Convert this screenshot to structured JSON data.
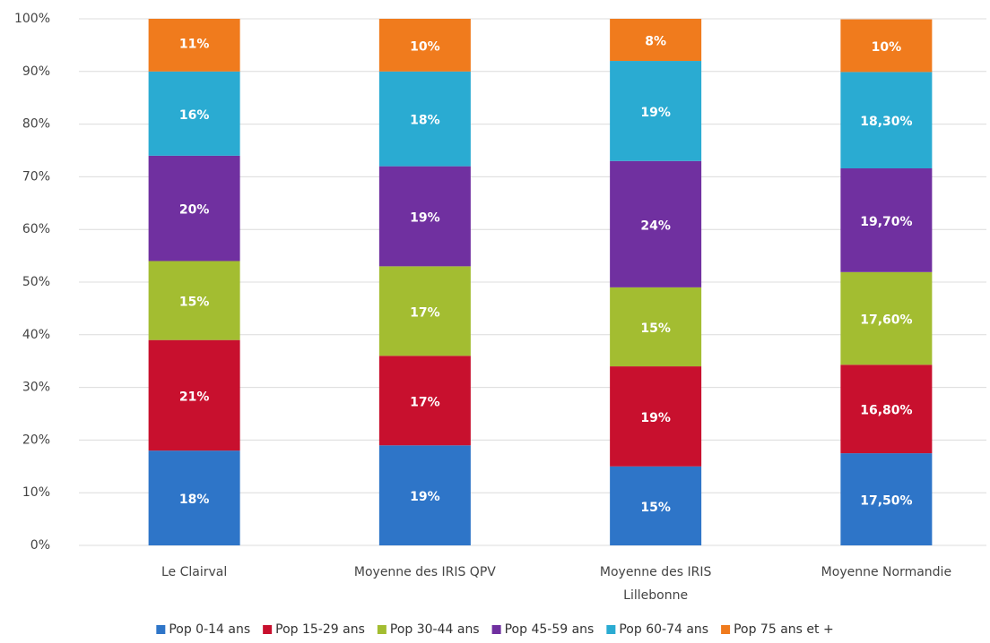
{
  "chart_data": {
    "type": "stacked_bar",
    "categories": [
      "Le Clairval",
      "Moyenne des IRIS QPV",
      "Moyenne des IRIS Lillebonne",
      "Moyenne Normandie"
    ],
    "series": [
      {
        "name": "Pop 0-14 ans",
        "color": "#2e75c8",
        "values": [
          18,
          19,
          15,
          17.5
        ],
        "value_labels": [
          "18%",
          "19%",
          "15%",
          "17,50%"
        ]
      },
      {
        "name": "Pop 15-29 ans",
        "color": "#c8102e",
        "values": [
          21,
          17,
          19,
          16.8
        ],
        "value_labels": [
          "21%",
          "17%",
          "19%",
          "16,80%"
        ]
      },
      {
        "name": "Pop 30-44 ans",
        "color": "#a3bd31",
        "values": [
          15,
          17,
          15,
          17.6
        ],
        "value_labels": [
          "15%",
          "17%",
          "15%",
          "17,60%"
        ]
      },
      {
        "name": "Pop 45-59 ans",
        "color": "#7030a0",
        "values": [
          20,
          19,
          24,
          19.7
        ],
        "value_labels": [
          "20%",
          "19%",
          "24%",
          "19,70%"
        ]
      },
      {
        "name": "Pop 60-74 ans",
        "color": "#2aabd2",
        "values": [
          16,
          18,
          19,
          18.3
        ],
        "value_labels": [
          "16%",
          "18%",
          "19%",
          "18,30%"
        ]
      },
      {
        "name": "Pop 75 ans et +",
        "color": "#f07b1d",
        "values": [
          11,
          10,
          8,
          10
        ],
        "value_labels": [
          "11%",
          "10%",
          "8%",
          "10%"
        ]
      }
    ],
    "ylim": [
      0,
      100
    ],
    "yticks": [
      {
        "value": 0,
        "label": "0%"
      },
      {
        "value": 10,
        "label": "10%"
      },
      {
        "value": 20,
        "label": "20%"
      },
      {
        "value": 30,
        "label": "30%"
      },
      {
        "value": 40,
        "label": "40%"
      },
      {
        "value": 50,
        "label": "50%"
      },
      {
        "value": 60,
        "label": "60%"
      },
      {
        "value": 70,
        "label": "70%"
      },
      {
        "value": 80,
        "label": "80%"
      },
      {
        "value": 90,
        "label": "90%"
      },
      {
        "value": 100,
        "label": "100%"
      }
    ],
    "grid": true,
    "legend": "bottom"
  }
}
